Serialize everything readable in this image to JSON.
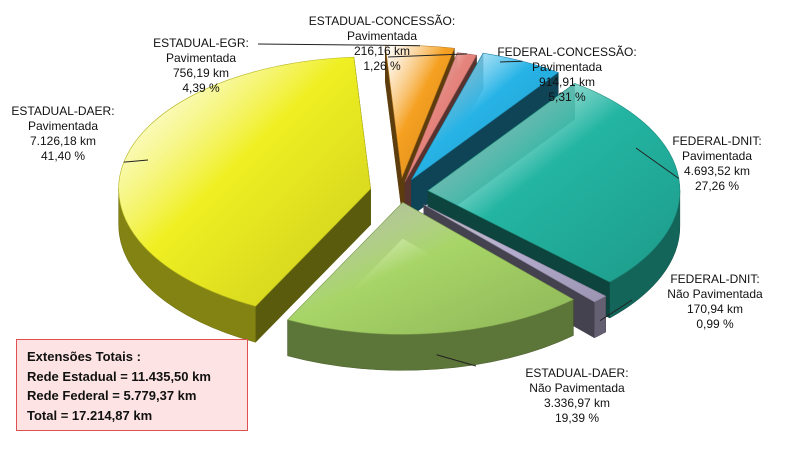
{
  "chart_data": {
    "type": "pie",
    "unit": "km",
    "slices": [
      {
        "label": "ESTADUAL-CONCESSÃO:",
        "sublabel": "Pavimentada",
        "value": 216.16,
        "value_text": "216,16 km",
        "percent_text": "1,26 %",
        "color": "#e5847c"
      },
      {
        "label": "FEDERAL-CONCESSÃO:",
        "sublabel": "Pavimentada",
        "value": 914.91,
        "value_text": "914,91 km",
        "percent_text": "5,31 %",
        "color": "#27b3e6"
      },
      {
        "label": "FEDERAL-DNIT:",
        "sublabel": "Pavimentada",
        "value": 4693.52,
        "value_text": "4.693,52 km",
        "percent_text": "27,26 %",
        "color": "#23b5a2"
      },
      {
        "label": "FEDERAL-DNIT:",
        "sublabel": "Não Pavimentada",
        "value": 170.94,
        "value_text": "170,94 km",
        "percent_text": "0,99 %",
        "color": "#b6aed0"
      },
      {
        "label": "ESTADUAL-DAER:",
        "sublabel": "Não Pavimentada",
        "value": 3336.97,
        "value_text": "3.336,97 km",
        "percent_text": "19,39 %",
        "color": "#a7d567"
      },
      {
        "label": "ESTADUAL-DAER:",
        "sublabel": "Pavimentada",
        "value": 7126.18,
        "value_text": "7.126,18 km",
        "percent_text": "41,40 %",
        "color": "#efef22"
      },
      {
        "label": "ESTADUAL-EGR:",
        "sublabel": "Pavimentada",
        "value": 756.19,
        "value_text": "756,19 km",
        "percent_text": "4,39 %",
        "color": "#f5a021"
      }
    ]
  },
  "totals": {
    "title": "Extensões Totais :",
    "estadual": "Rede Estadual = 11.435,50 km",
    "federal": "Rede Federal = 5.779,37 km",
    "total": "Total = 17.214,87 km"
  }
}
